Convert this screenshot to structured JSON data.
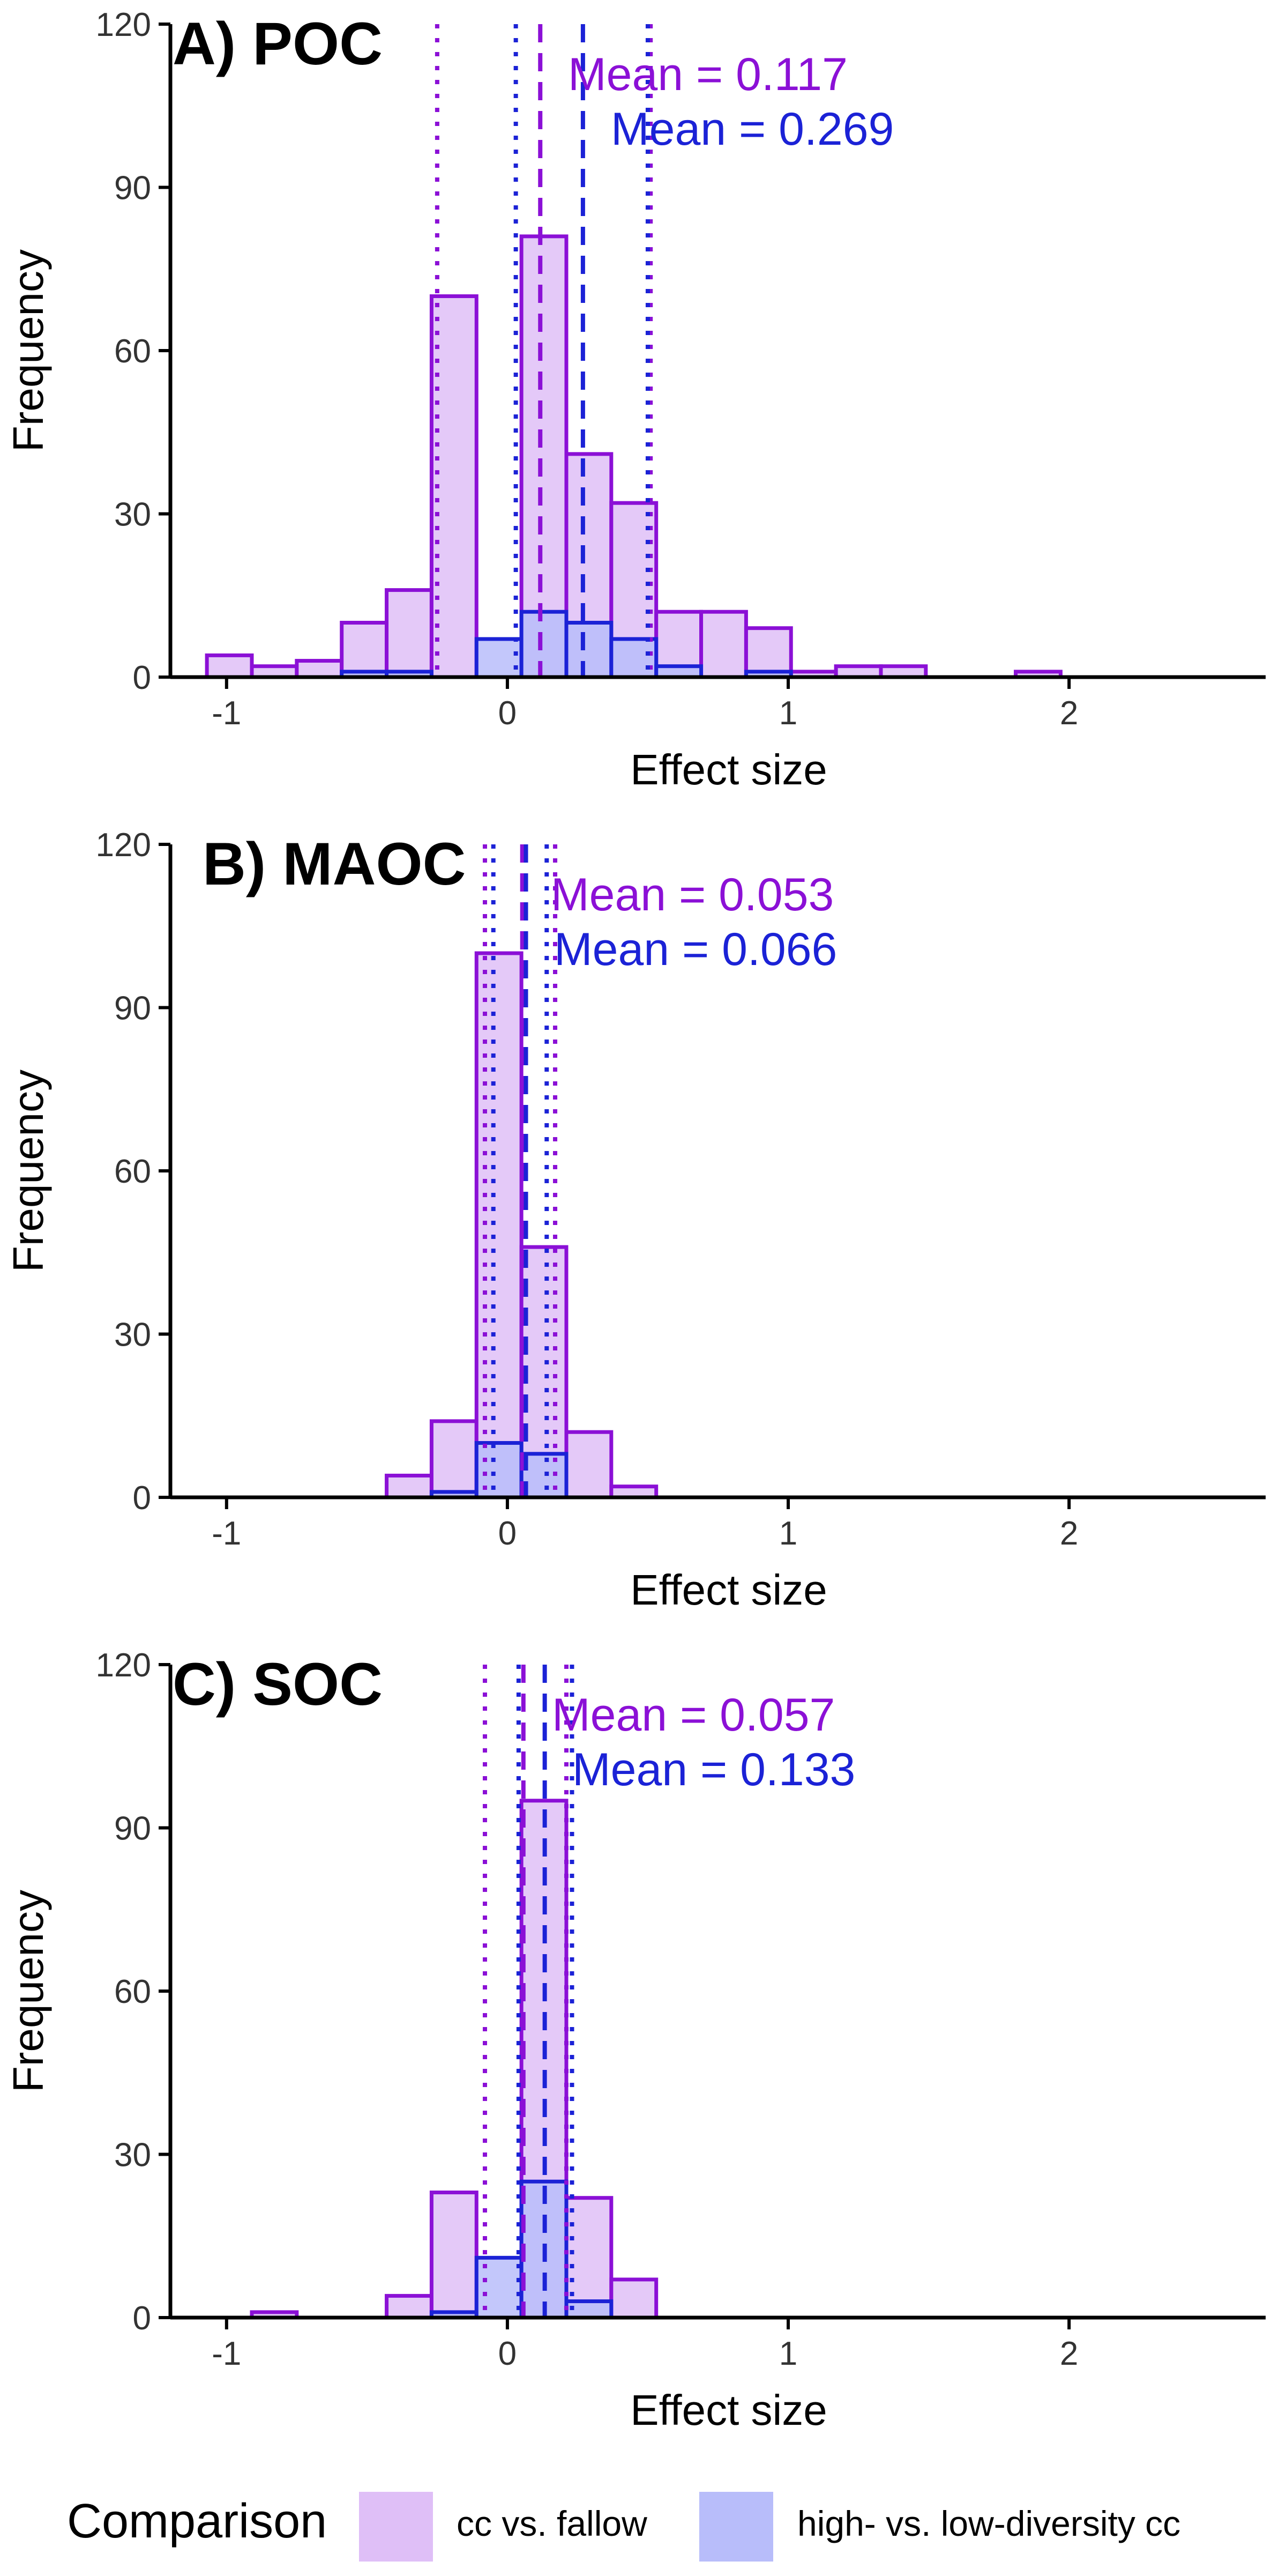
{
  "colors": {
    "cc_fill": "#dfbff7",
    "cc_stroke": "#8b10d6",
    "hd_fill": "#b8bdfa",
    "hd_stroke": "#1b22d6",
    "mean_cc_text": "#8b10d6",
    "mean_hd_text": "#1b22d6",
    "axis": "#000000"
  },
  "legend": {
    "title": "Comparison",
    "items": [
      {
        "label": "cc vs. fallow",
        "color_key": "cc"
      },
      {
        "label": "high- vs. low-diversity cc",
        "color_key": "hd"
      }
    ]
  },
  "chart_data": [
    {
      "type": "bar",
      "title": "A) POC",
      "xlabel": "Effect size",
      "ylabel": "Frequency",
      "xlim": [
        -1.2,
        2.7
      ],
      "ylim": [
        0,
        120
      ],
      "xticks": [
        -1,
        0,
        1,
        2
      ],
      "xtick_labels": [
        "-1",
        "0",
        "1",
        "2"
      ],
      "yticks": [
        0,
        30,
        60,
        90,
        120
      ],
      "ytick_labels": [
        "0",
        "30",
        "60",
        "90",
        "120"
      ],
      "bin_width": 0.16,
      "series": [
        {
          "name": "cc vs. fallow",
          "color_key": "cc",
          "bin_starts": [
            -1.07,
            -0.91,
            -0.75,
            -0.59,
            -0.43,
            -0.27,
            -0.11,
            0.05,
            0.21,
            0.37,
            0.53,
            0.69,
            0.85,
            1.01,
            1.17,
            1.33,
            1.49,
            1.65,
            1.81
          ],
          "counts": [
            4,
            2,
            3,
            10,
            16,
            70,
            0,
            81,
            41,
            32,
            12,
            12,
            9,
            1,
            2,
            2,
            0,
            0,
            1
          ],
          "mean": 0.117,
          "ci": [
            -0.25,
            0.51
          ],
          "mean_label": "Mean =  0.117"
        },
        {
          "name": "high- vs. low-diversity cc",
          "color_key": "hd",
          "bin_starts": [
            -0.59,
            -0.43,
            -0.27,
            -0.11,
            0.05,
            0.21,
            0.37,
            0.53,
            0.69,
            0.85,
            1.01,
            1.17
          ],
          "counts": [
            1,
            1,
            0,
            7,
            12,
            10,
            7,
            2,
            0,
            1,
            0,
            0
          ],
          "mean": 0.269,
          "ci": [
            0.03,
            0.5
          ],
          "mean_label": "Mean =  0.269"
        }
      ]
    },
    {
      "type": "bar",
      "title": "B) MAOC",
      "xlabel": "Effect size",
      "ylabel": "Frequency",
      "xlim": [
        -1.2,
        2.7
      ],
      "ylim": [
        0,
        120
      ],
      "xticks": [
        -1,
        0,
        1,
        2
      ],
      "xtick_labels": [
        "-1",
        "0",
        "1",
        "2"
      ],
      "yticks": [
        0,
        30,
        60,
        90,
        120
      ],
      "ytick_labels": [
        "0",
        "30",
        "60",
        "90",
        "120"
      ],
      "bin_width": 0.16,
      "series": [
        {
          "name": "cc vs. fallow",
          "color_key": "cc",
          "bin_starts": [
            -0.43,
            -0.27,
            -0.11,
            0.05,
            0.21,
            0.37
          ],
          "counts": [
            4,
            14,
            100,
            46,
            12,
            2
          ],
          "mean": 0.053,
          "ci": [
            -0.08,
            0.17
          ],
          "mean_label": "Mean =  0.053"
        },
        {
          "name": "high- vs. low-diversity cc",
          "color_key": "hd",
          "bin_starts": [
            -0.27,
            -0.11,
            0.05,
            0.21
          ],
          "counts": [
            1,
            10,
            8,
            0
          ],
          "mean": 0.066,
          "ci": [
            -0.05,
            0.14
          ],
          "mean_label": "Mean =  0.066"
        }
      ]
    },
    {
      "type": "bar",
      "title": "C) SOC",
      "xlabel": "Effect size",
      "ylabel": "Frequency",
      "xlim": [
        -1.2,
        2.7
      ],
      "ylim": [
        0,
        120
      ],
      "xticks": [
        -1,
        0,
        1,
        2
      ],
      "xtick_labels": [
        "-1",
        "0",
        "1",
        "2"
      ],
      "yticks": [
        0,
        30,
        60,
        90,
        120
      ],
      "ytick_labels": [
        "0",
        "30",
        "60",
        "90",
        "120"
      ],
      "bin_width": 0.16,
      "series": [
        {
          "name": "cc vs. fallow",
          "color_key": "cc",
          "bin_starts": [
            -0.91,
            -0.75,
            -0.59,
            -0.43,
            -0.27,
            -0.11,
            0.05,
            0.21,
            0.37
          ],
          "counts": [
            1,
            0,
            0,
            4,
            23,
            0,
            95,
            22,
            7
          ],
          "mean": 0.057,
          "ci": [
            -0.08,
            0.21
          ],
          "mean_label": "Mean =  0.057"
        },
        {
          "name": "high- vs. low-diversity cc",
          "color_key": "hd",
          "bin_starts": [
            -0.27,
            -0.11,
            0.05,
            0.21
          ],
          "counts": [
            1,
            11,
            25,
            3
          ],
          "mean": 0.133,
          "ci": [
            0.04,
            0.23
          ],
          "mean_label": "Mean =  0.133"
        }
      ]
    }
  ]
}
